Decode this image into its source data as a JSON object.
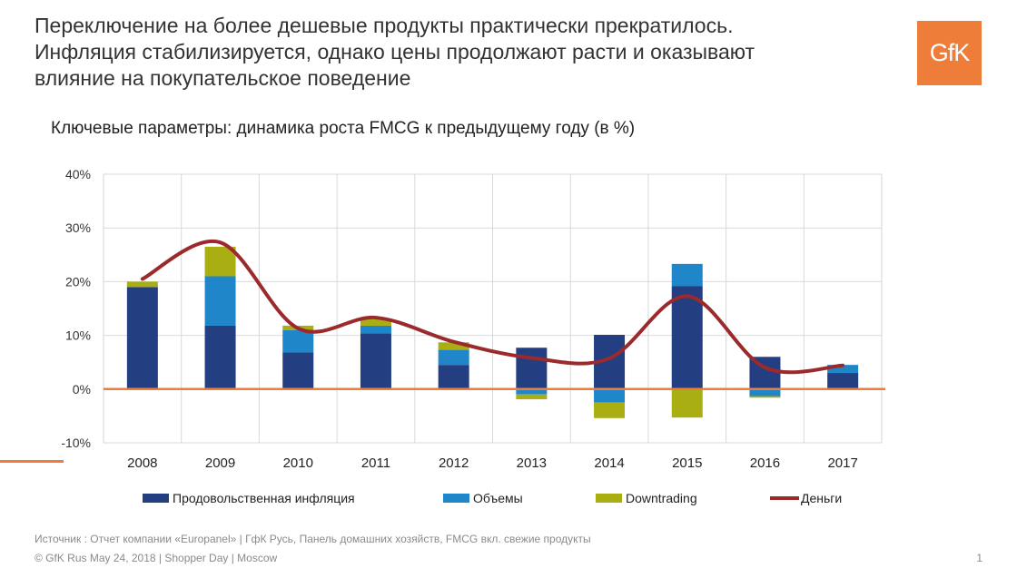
{
  "title": {
    "line1": "Переключение на более дешевые продукты практически прекратилось.",
    "line2": "Инфляция стабилизируется, однако цены продолжают расти и оказывают",
    "line3": "влияние на покупательское поведение"
  },
  "subtitle": "Ключевые параметры: динамика роста FMCG к предыдущему году (в %)",
  "logo": {
    "text": "GfK",
    "color": "#ef7d3a"
  },
  "source": "Источник : Отчет компании «Europanel» | ГфК Русь, Панель домашних хозяйств, FMCG вкл. свежие продукты",
  "footer": "© GfK Rus May 24, 2018 | Shopper Day | Moscow",
  "page_number": "1",
  "chart_data": {
    "type": "bar",
    "stacked": true,
    "categories": [
      "2008",
      "2009",
      "2010",
      "2011",
      "2012",
      "2013",
      "2014",
      "2015",
      "2016",
      "2017"
    ],
    "yticks": [
      "-10%",
      "0%",
      "10%",
      "20%",
      "30%",
      "40%"
    ],
    "ylim": [
      -10,
      40
    ],
    "grid": true,
    "legend_position": "bottom",
    "series": [
      {
        "name": "Продовольственная инфляция",
        "color": "#243e82",
        "values": [
          19,
          11.8,
          6.8,
          10.4,
          4.5,
          7.7,
          10.1,
          19.2,
          6,
          3
        ]
      },
      {
        "name": "Объемы",
        "color": "#1f86c9",
        "values": [
          0,
          9.2,
          4.2,
          1.4,
          2.8,
          -1,
          -2.5,
          4.1,
          -1.3,
          1.5
        ]
      },
      {
        "name": "Downtrading",
        "color": "#a9ae12",
        "values": [
          1,
          5.5,
          0.8,
          1.2,
          1.4,
          -0.9,
          -2.9,
          -5.3,
          -0.3,
          0
        ]
      },
      {
        "name": "Деньги",
        "type": "line",
        "color": "#9b2a2c",
        "values": [
          20.5,
          27.3,
          11.3,
          13.3,
          8.8,
          5.8,
          5.7,
          17.3,
          4,
          4.4
        ]
      }
    ]
  }
}
